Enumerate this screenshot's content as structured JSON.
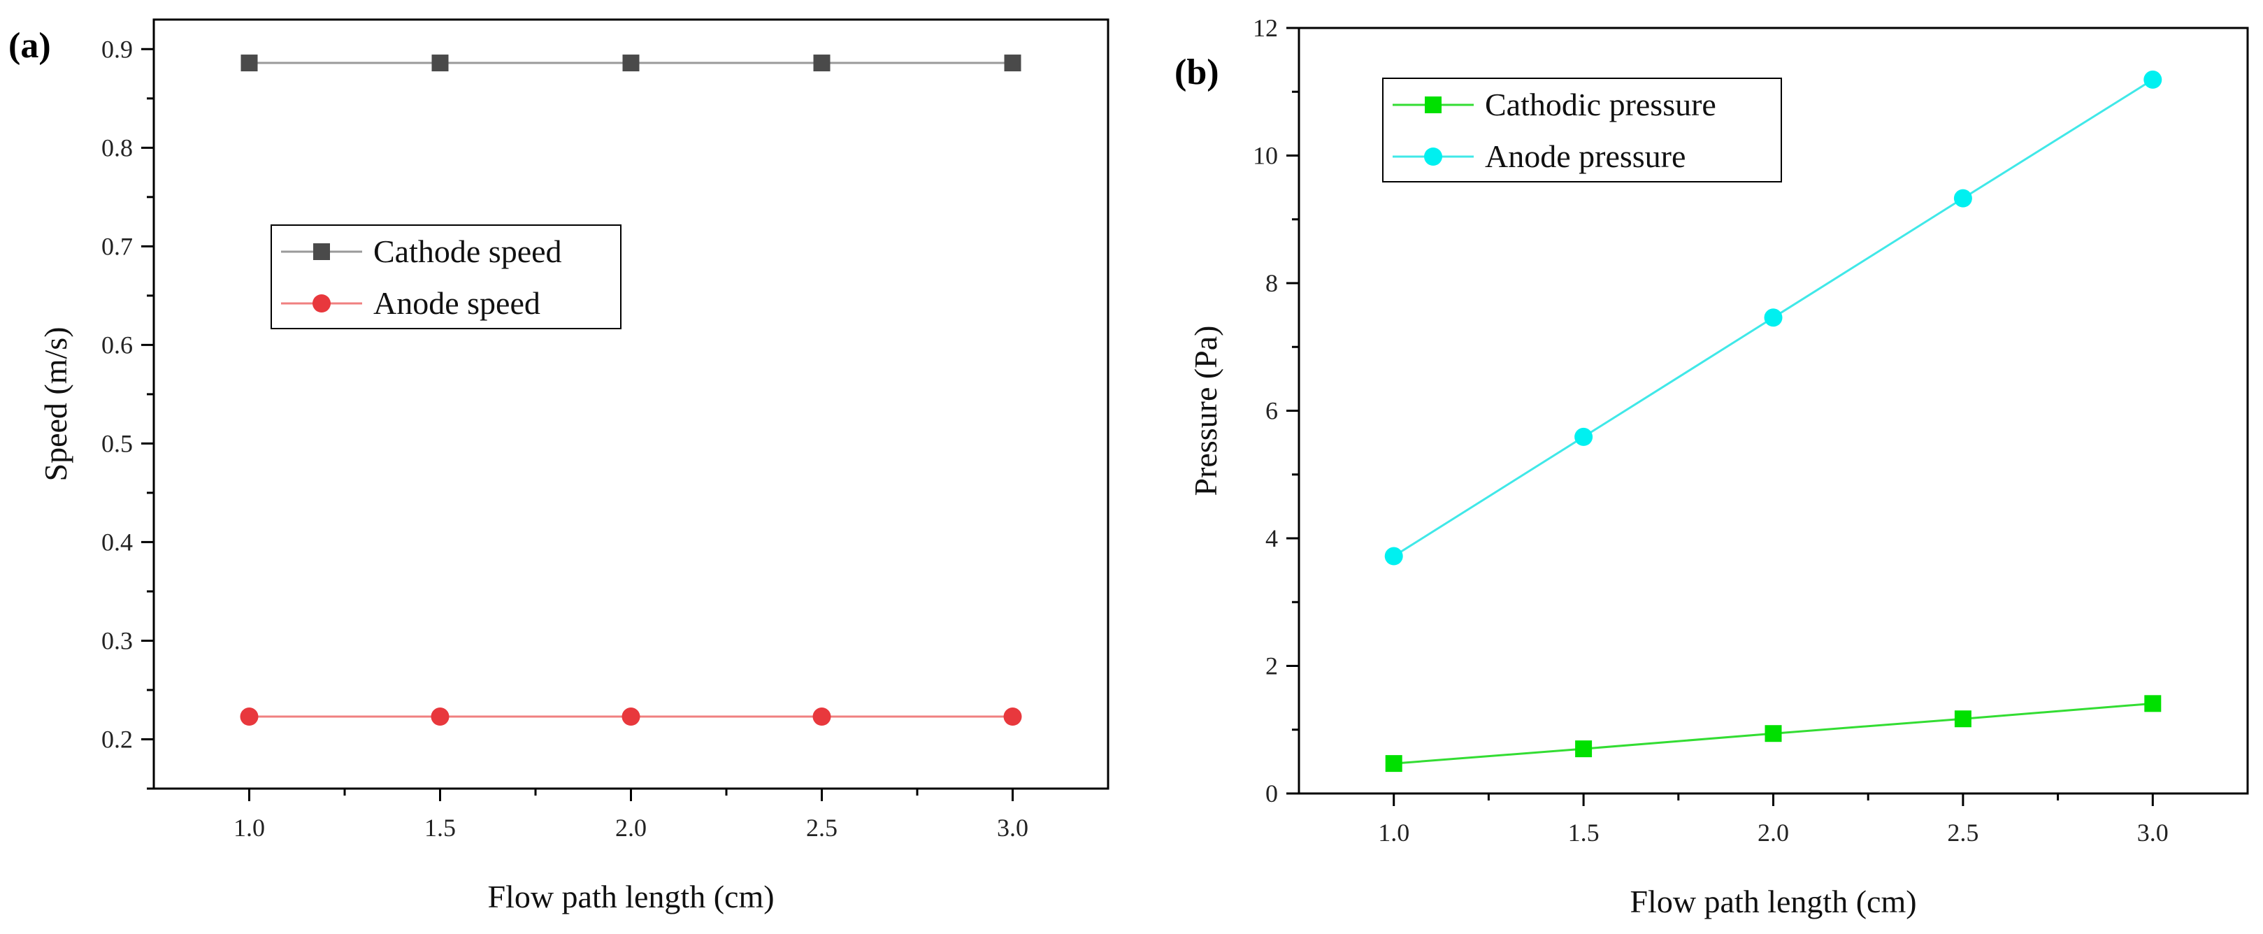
{
  "chart_data": [
    {
      "panel_label": "(a)",
      "type": "line",
      "title": "",
      "xlabel": "Flow path length (cm)",
      "ylabel": "Speed (m/s)",
      "xlim": [
        0.75,
        3.25
      ],
      "ylim": [
        0.15,
        0.93
      ],
      "x": [
        1.0,
        1.5,
        2.0,
        2.5,
        3.0
      ],
      "xticks": [
        1.0,
        1.5,
        2.0,
        2.5,
        3.0
      ],
      "xtick_labels": [
        "1.0",
        "1.5",
        "2.0",
        "2.5",
        "3.0"
      ],
      "yticks": [
        0.2,
        0.3,
        0.4,
        0.5,
        0.6,
        0.7,
        0.8,
        0.9
      ],
      "ytick_labels": [
        "0.2",
        "0.3",
        "0.4",
        "0.5",
        "0.6",
        "0.7",
        "0.8",
        "0.9"
      ],
      "series": [
        {
          "name": "Cathode speed",
          "marker": "square",
          "color": "#4a4a4a",
          "line_color": "#9a9a9a",
          "values": [
            0.886,
            0.886,
            0.886,
            0.886,
            0.886
          ]
        },
        {
          "name": "Anode speed",
          "marker": "circle",
          "color": "#e8383d",
          "line_color": "#f08080",
          "values": [
            0.223,
            0.223,
            0.223,
            0.223,
            0.223
          ]
        }
      ],
      "legend": "center-left",
      "grid": false
    },
    {
      "panel_label": "(b)",
      "type": "line",
      "title": "",
      "xlabel": "Flow path length (cm)",
      "ylabel": "Pressure (Pa)",
      "xlim": [
        0.75,
        3.25
      ],
      "ylim": [
        0,
        12
      ],
      "x": [
        1.0,
        1.5,
        2.0,
        2.5,
        3.0
      ],
      "xticks": [
        1.0,
        1.5,
        2.0,
        2.5,
        3.0
      ],
      "xtick_labels": [
        "1.0",
        "1.5",
        "2.0",
        "2.5",
        "3.0"
      ],
      "yticks": [
        0,
        2,
        4,
        6,
        8,
        10,
        12
      ],
      "ytick_labels": [
        "0",
        "2",
        "4",
        "6",
        "8",
        "10",
        "12"
      ],
      "series": [
        {
          "name": "Cathodic pressure",
          "marker": "square",
          "color": "#00e000",
          "line_color": "#33dd33",
          "values": [
            0.47,
            0.7,
            0.94,
            1.17,
            1.41
          ]
        },
        {
          "name": "Anode pressure",
          "marker": "circle",
          "color": "#00f0f0",
          "line_color": "#40e8e8",
          "values": [
            3.72,
            5.59,
            7.46,
            9.33,
            11.19
          ]
        }
      ],
      "legend": "top-left",
      "grid": false
    }
  ]
}
